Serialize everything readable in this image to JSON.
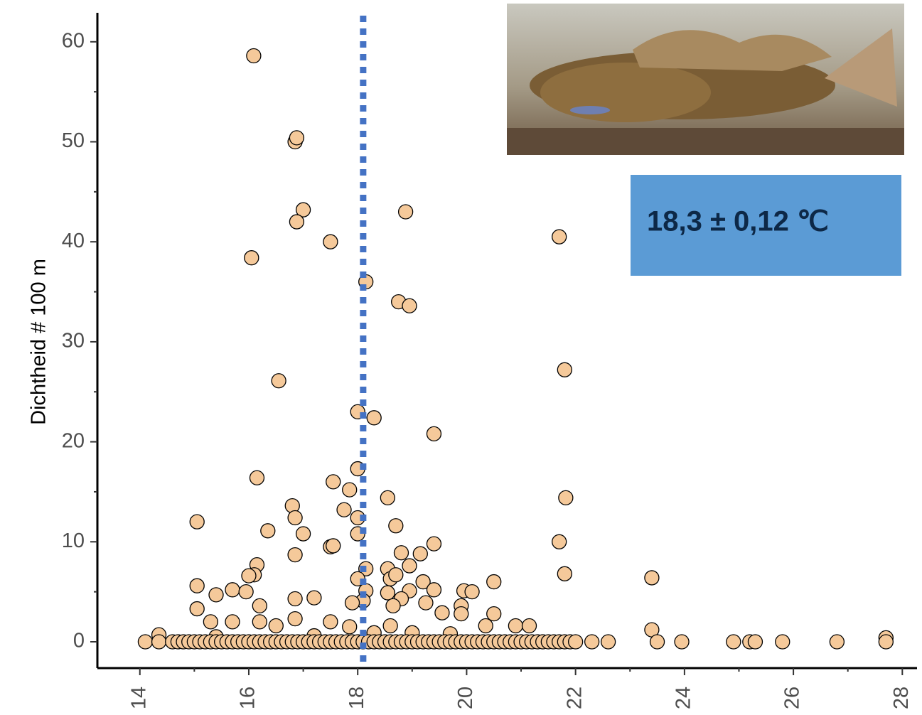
{
  "chart_data": {
    "type": "scatter",
    "y_label": "Dichtheid # 100 m",
    "annotation": "18,3 ± 0,12 ℃",
    "vline": 18.1,
    "vline_color": "#4472c4",
    "color": "#f5c99a",
    "xlim": [
      13.22,
      28.27
    ],
    "ylim": [
      -2.63,
      62.9
    ],
    "xticks": [
      14,
      16,
      18,
      20,
      22,
      24,
      26,
      28
    ],
    "xticks_minor": [
      15,
      17,
      19,
      21,
      23,
      25,
      27
    ],
    "yticks": [
      0,
      10,
      20,
      30,
      40,
      50,
      60
    ],
    "yticks_minor": [
      5,
      15,
      25,
      35,
      45,
      55
    ],
    "x": [
      16.09,
      16.85,
      16.88,
      17.0,
      16.88,
      17.5,
      16.05,
      18.15,
      18.88,
      21.7,
      18.75,
      18.95,
      21.8,
      16.55,
      18.0,
      18.3,
      19.4,
      16.15,
      17.55,
      18.0,
      17.85,
      17.75,
      18.55,
      21.82,
      16.8,
      16.85,
      18.0,
      15.05,
      18.7,
      16.35,
      17.0,
      18.0,
      21.7,
      17.5,
      17.55,
      19.4,
      18.8,
      19.15,
      16.85,
      18.95,
      16.15,
      18.15,
      18.55,
      16.1,
      16.0,
      18.0,
      18.6,
      18.7,
      21.8,
      23.4,
      20.5,
      19.2,
      15.05,
      15.7,
      15.95,
      15.4,
      16.85,
      17.2,
      18.55,
      18.95,
      19.4,
      19.95,
      20.1,
      18.15,
      18.1,
      18.8,
      19.25,
      16.2,
      15.05,
      17.9,
      18.65,
      19.9,
      19.55,
      20.5,
      19.9,
      16.85,
      15.7,
      16.2,
      15.3,
      17.5,
      17.85,
      18.6,
      20.35,
      20.9,
      21.15,
      23.4,
      14.35,
      15.4,
      16.5,
      17.2,
      18.3,
      19.0,
      19.7,
      27.7,
      14.1,
      14.35,
      14.6,
      14.7,
      14.8,
      14.9,
      15.0,
      15.1,
      15.2,
      15.3,
      15.4,
      15.5,
      15.6,
      15.7,
      15.8,
      15.9,
      16.0,
      16.1,
      16.2,
      16.3,
      16.4,
      16.5,
      16.6,
      16.7,
      16.8,
      16.9,
      17.0,
      17.1,
      17.2,
      17.3,
      17.4,
      17.5,
      17.6,
      17.7,
      17.8,
      17.9,
      18.0,
      18.1,
      18.2,
      18.3,
      18.4,
      18.5,
      18.6,
      18.7,
      18.8,
      18.9,
      19.0,
      19.1,
      19.2,
      19.3,
      19.4,
      19.5,
      19.6,
      19.7,
      19.8,
      19.9,
      20.0,
      20.1,
      20.2,
      20.3,
      20.4,
      20.5,
      20.6,
      20.7,
      20.8,
      20.9,
      21.0,
      21.1,
      21.2,
      21.3,
      21.4,
      21.5,
      21.6,
      21.7,
      21.8,
      21.9,
      22.0,
      22.3,
      22.6,
      23.5,
      23.95,
      24.9,
      25.2,
      25.3,
      25.8,
      26.8,
      27.7
    ],
    "values": [
      58.6,
      50.0,
      50.4,
      43.2,
      42.0,
      40.0,
      38.4,
      36.0,
      43.0,
      40.5,
      34.0,
      33.6,
      27.2,
      26.1,
      23.0,
      22.4,
      20.8,
      16.4,
      16.0,
      17.3,
      15.2,
      13.2,
      14.4,
      14.4,
      13.6,
      12.4,
      12.4,
      12.0,
      11.6,
      11.1,
      10.8,
      10.8,
      10.0,
      9.5,
      9.6,
      9.8,
      8.9,
      8.8,
      8.7,
      7.6,
      7.7,
      7.3,
      7.3,
      6.7,
      6.6,
      6.3,
      6.3,
      6.7,
      6.8,
      6.4,
      6.0,
      6.0,
      5.6,
      5.2,
      5.0,
      4.7,
      4.3,
      4.4,
      4.9,
      5.1,
      5.2,
      5.1,
      5.0,
      5.1,
      4.1,
      4.3,
      3.9,
      3.6,
      3.3,
      3.9,
      3.6,
      3.6,
      2.9,
      2.8,
      2.8,
      2.3,
      2.0,
      2.0,
      2.0,
      2.0,
      1.5,
      1.6,
      1.6,
      1.6,
      1.6,
      1.2,
      0.7,
      0.5,
      1.6,
      0.6,
      0.9,
      0.9,
      0.8,
      0.4,
      0,
      0,
      0,
      0,
      0,
      0,
      0,
      0,
      0,
      0,
      0,
      0,
      0,
      0,
      0,
      0,
      0,
      0,
      0,
      0,
      0,
      0,
      0,
      0,
      0,
      0,
      0,
      0,
      0,
      0,
      0,
      0,
      0,
      0,
      0,
      0,
      0,
      0,
      0,
      0,
      0,
      0,
      0,
      0,
      0,
      0,
      0,
      0,
      0,
      0,
      0,
      0,
      0,
      0,
      0,
      0,
      0,
      0,
      0,
      0,
      0,
      0,
      0,
      0,
      0,
      0,
      0,
      0,
      0,
      0,
      0,
      0,
      0,
      0,
      0,
      0,
      0,
      0,
      0,
      0,
      0,
      0,
      0,
      0,
      0,
      0,
      0
    ]
  }
}
